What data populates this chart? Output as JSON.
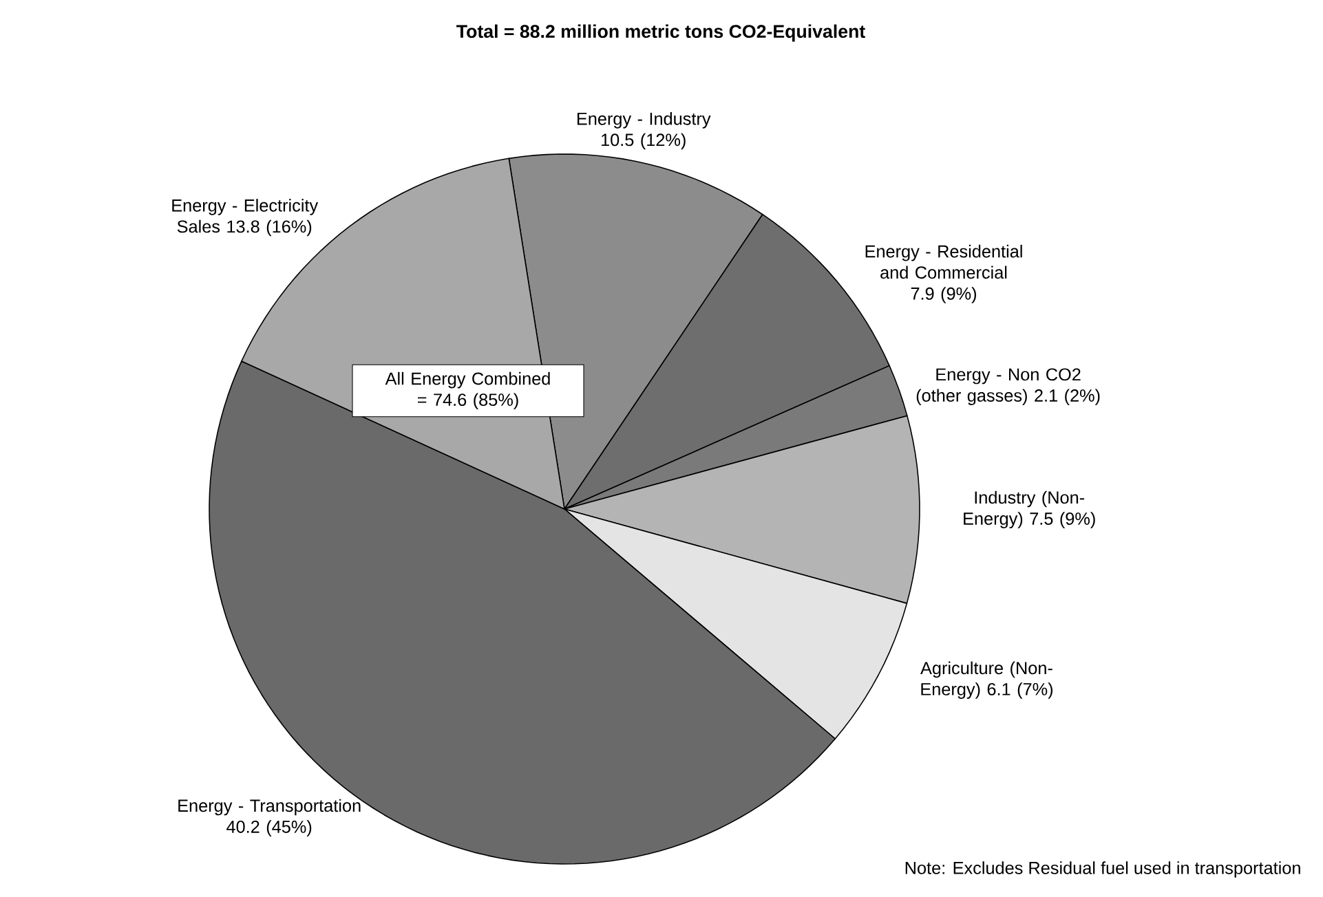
{
  "chart_data": {
    "type": "pie",
    "title": "Total = 88.2 million metric tons CO2-Equivalent",
    "categories": [
      "Energy - Industry",
      "Energy - Residential and Commercial",
      "Energy - Non CO2 (other gasses)",
      "Industry (Non-Energy)",
      "Agriculture (Non-Energy)",
      "Energy - Transportation",
      "Energy - Electricity Sales"
    ],
    "values": [
      10.5,
      7.9,
      2.1,
      7.5,
      6.1,
      40.2,
      13.8
    ],
    "value_labels": [
      "10.5  (12%)",
      "7.9 (9%)",
      "2.1 (2%)",
      "7.5  (9%)",
      "6.1 (7%)",
      "40.2 (45%)",
      "13.8  (16%)"
    ],
    "colors": [
      "#8c8c8c",
      "#6e6e6e",
      "#7a7a7a",
      "#b4b4b4",
      "#e4e4e4",
      "#6a6a6a",
      "#a8a8a8"
    ],
    "annotations": [
      "All Energy Combined = 74.6 (85%)",
      "Note: Excludes Residual fuel used in transportation"
    ]
  }
}
